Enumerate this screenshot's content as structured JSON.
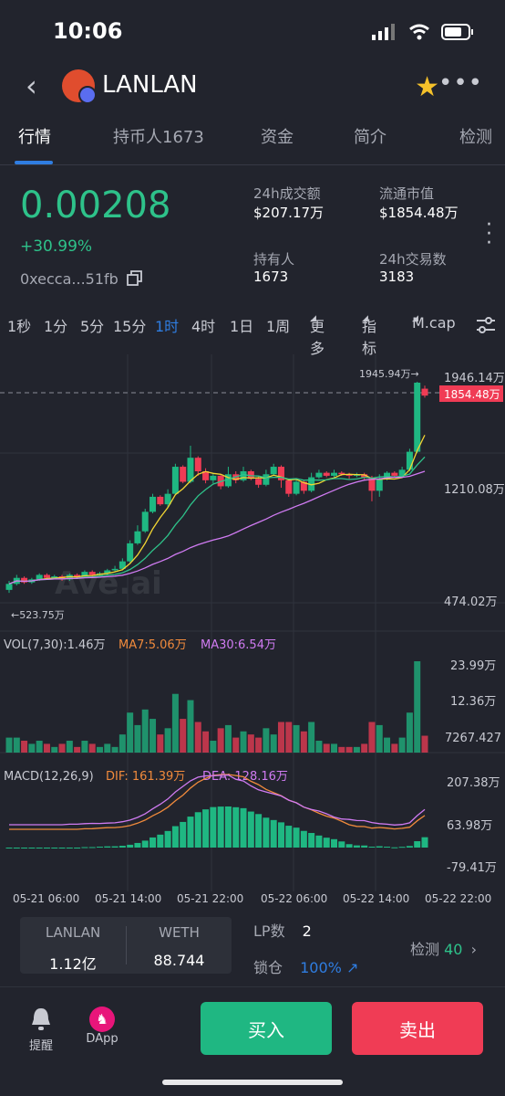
{
  "status": {
    "time": "10:06"
  },
  "header": {
    "title": "LANLAN"
  },
  "tabs": [
    {
      "label": "行情"
    },
    {
      "label": "持币人1673"
    },
    {
      "label": "资金"
    },
    {
      "label": "简介"
    },
    {
      "label": "检测"
    }
  ],
  "token": {
    "price": "0.00208",
    "change": "+30.99%",
    "address": "0xecca...51fb"
  },
  "stats": {
    "vol24h_label": "24h成交额",
    "vol24h_value": "$207.17万",
    "mcap_label": "流通市值",
    "mcap_value": "$1854.48万",
    "holders_label": "持有人",
    "holders_value": "1673",
    "tx24h_label": "24h交易数",
    "tx24h_value": "3183"
  },
  "intervals": [
    "1秒",
    "1分",
    "5分",
    "15分",
    "1时",
    "4时",
    "1日",
    "1周"
  ],
  "selected_interval": "1时",
  "toolbar": {
    "more": "更多",
    "indicators": "指标",
    "mcap": "M.cap"
  },
  "chart_data": {
    "type": "candlestick",
    "price_axis": [
      "1946.14万",
      "1210.08万",
      "474.02万"
    ],
    "current_label": "1854.48万",
    "high_label": "1945.94万",
    "low_label": "523.75万",
    "x_ticks": [
      "05-21 06:00",
      "05-21 14:00",
      "05-21 22:00",
      "05-22 06:00",
      "05-22 14:00",
      "05-22 22:00"
    ],
    "vol_legend": {
      "vol": "VOL(7,30):1.46万",
      "ma7": "MA7:5.06万",
      "ma30": "MA30:6.54万"
    },
    "vol_axis": [
      "23.99万",
      "12.36万",
      "7267.427"
    ],
    "macd_legend": {
      "macd": "MACD(12,26,9)",
      "dif": "DIF: 161.39万",
      "dea": "DEA: 128.16万"
    },
    "macd_axis": [
      "207.38万",
      "63.98万",
      "-79.41万"
    ],
    "candles": [
      {
        "o": 560,
        "c": 600,
        "h": 620,
        "l": 540
      },
      {
        "o": 600,
        "c": 640,
        "h": 660,
        "l": 590
      },
      {
        "o": 640,
        "c": 610,
        "h": 650,
        "l": 600
      },
      {
        "o": 610,
        "c": 630,
        "h": 640,
        "l": 600
      },
      {
        "o": 630,
        "c": 660,
        "h": 670,
        "l": 620
      },
      {
        "o": 660,
        "c": 640,
        "h": 670,
        "l": 630
      },
      {
        "o": 640,
        "c": 650,
        "h": 660,
        "l": 630
      },
      {
        "o": 650,
        "c": 630,
        "h": 660,
        "l": 620
      },
      {
        "o": 630,
        "c": 660,
        "h": 670,
        "l": 620
      },
      {
        "o": 660,
        "c": 650,
        "h": 670,
        "l": 640
      },
      {
        "o": 650,
        "c": 680,
        "h": 690,
        "l": 640
      },
      {
        "o": 680,
        "c": 660,
        "h": 690,
        "l": 650
      },
      {
        "o": 660,
        "c": 670,
        "h": 680,
        "l": 650
      },
      {
        "o": 670,
        "c": 690,
        "h": 700,
        "l": 660
      },
      {
        "o": 690,
        "c": 700,
        "h": 720,
        "l": 680
      },
      {
        "o": 700,
        "c": 750,
        "h": 770,
        "l": 690
      },
      {
        "o": 750,
        "c": 870,
        "h": 890,
        "l": 740
      },
      {
        "o": 870,
        "c": 950,
        "h": 990,
        "l": 860
      },
      {
        "o": 950,
        "c": 1080,
        "h": 1100,
        "l": 940
      },
      {
        "o": 1080,
        "c": 1180,
        "h": 1200,
        "l": 1070
      },
      {
        "o": 1180,
        "c": 1130,
        "h": 1190,
        "l": 1120
      },
      {
        "o": 1130,
        "c": 1200,
        "h": 1230,
        "l": 1110
      },
      {
        "o": 1200,
        "c": 1380,
        "h": 1400,
        "l": 1190
      },
      {
        "o": 1380,
        "c": 1280,
        "h": 1390,
        "l": 1270
      },
      {
        "o": 1280,
        "c": 1440,
        "h": 1520,
        "l": 1270
      },
      {
        "o": 1440,
        "c": 1350,
        "h": 1450,
        "l": 1320
      },
      {
        "o": 1350,
        "c": 1290,
        "h": 1370,
        "l": 1270
      },
      {
        "o": 1290,
        "c": 1320,
        "h": 1340,
        "l": 1270
      },
      {
        "o": 1320,
        "c": 1250,
        "h": 1330,
        "l": 1230
      },
      {
        "o": 1250,
        "c": 1330,
        "h": 1380,
        "l": 1240
      },
      {
        "o": 1330,
        "c": 1290,
        "h": 1350,
        "l": 1270
      },
      {
        "o": 1290,
        "c": 1350,
        "h": 1380,
        "l": 1280
      },
      {
        "o": 1350,
        "c": 1300,
        "h": 1360,
        "l": 1290
      },
      {
        "o": 1300,
        "c": 1260,
        "h": 1320,
        "l": 1240
      },
      {
        "o": 1260,
        "c": 1330,
        "h": 1360,
        "l": 1250
      },
      {
        "o": 1330,
        "c": 1380,
        "h": 1400,
        "l": 1320
      },
      {
        "o": 1380,
        "c": 1290,
        "h": 1390,
        "l": 1240
      },
      {
        "o": 1290,
        "c": 1200,
        "h": 1300,
        "l": 1180
      },
      {
        "o": 1200,
        "c": 1280,
        "h": 1300,
        "l": 1190
      },
      {
        "o": 1280,
        "c": 1220,
        "h": 1290,
        "l": 1200
      },
      {
        "o": 1220,
        "c": 1310,
        "h": 1340,
        "l": 1210
      },
      {
        "o": 1310,
        "c": 1340,
        "h": 1360,
        "l": 1300
      },
      {
        "o": 1340,
        "c": 1320,
        "h": 1350,
        "l": 1310
      },
      {
        "o": 1320,
        "c": 1340,
        "h": 1360,
        "l": 1310
      },
      {
        "o": 1340,
        "c": 1330,
        "h": 1350,
        "l": 1320
      },
      {
        "o": 1330,
        "c": 1320,
        "h": 1340,
        "l": 1300
      },
      {
        "o": 1320,
        "c": 1330,
        "h": 1340,
        "l": 1310
      },
      {
        "o": 1330,
        "c": 1310,
        "h": 1340,
        "l": 1290
      },
      {
        "o": 1310,
        "c": 1220,
        "h": 1320,
        "l": 1150
      },
      {
        "o": 1220,
        "c": 1300,
        "h": 1330,
        "l": 1180
      },
      {
        "o": 1300,
        "c": 1340,
        "h": 1350,
        "l": 1290
      },
      {
        "o": 1340,
        "c": 1320,
        "h": 1350,
        "l": 1310
      },
      {
        "o": 1320,
        "c": 1360,
        "h": 1380,
        "l": 1310
      },
      {
        "o": 1360,
        "c": 1480,
        "h": 1500,
        "l": 1350
      },
      {
        "o": 1480,
        "c": 1940,
        "h": 1946,
        "l": 1470
      },
      {
        "o": 1900,
        "c": 1854,
        "h": 1920,
        "l": 1840
      }
    ]
  },
  "pair": {
    "token_a": "LANLAN",
    "token_b": "WETH",
    "amount_a": "1.12亿",
    "amount_b": "88.744"
  },
  "lp": {
    "label": "LP数",
    "value": "2",
    "lock_label": "锁仓",
    "lock_value": "100%"
  },
  "check": {
    "label": "检测",
    "value": "40"
  },
  "bottom": {
    "alert": "提醒",
    "dapp": "DApp",
    "buy": "买入",
    "sell": "卖出"
  },
  "watermark": "Ave.ai",
  "colors": {
    "up": "#1fb782",
    "down": "#f03c55",
    "accent": "#2f7de1",
    "ma_yellow": "#f2d633",
    "ma_green": "#2ec28a",
    "ma_pink": "#d07bf2",
    "orange": "#f08a3c"
  }
}
